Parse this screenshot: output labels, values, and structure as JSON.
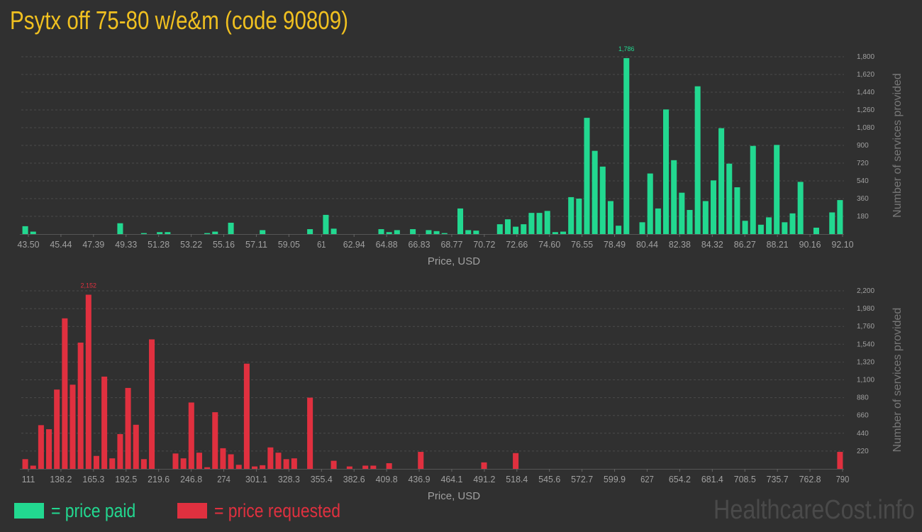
{
  "title": "Psytx off 75-80 w/e&m (code 90809)",
  "colors": {
    "background": "#303030",
    "title": "#f0c020",
    "paid": "#22d890",
    "requested": "#e0303f",
    "grid": "#4a4a4a",
    "axis_text": "#a0a0a0"
  },
  "legend": {
    "paid_label": "= price paid",
    "requested_label": "= price requested"
  },
  "watermark": "HealthcareCost.info",
  "chart_data": [
    {
      "type": "bar",
      "series_name": "price paid",
      "xlabel": "Price, USD",
      "ylabel": "Number of services provided",
      "x_tick_labels": [
        "43.50",
        "45.44",
        "47.39",
        "49.33",
        "51.28",
        "53.22",
        "55.16",
        "57.11",
        "59.05",
        "61",
        "62.94",
        "64.88",
        "66.83",
        "68.77",
        "70.72",
        "72.66",
        "74.60",
        "76.55",
        "78.49",
        "80.44",
        "82.38",
        "84.32",
        "86.27",
        "88.21",
        "90.16",
        "92.10"
      ],
      "y_tick_labels": [
        "180",
        "360",
        "540",
        "720",
        "900",
        "1,080",
        "1,260",
        "1,440",
        "1,620",
        "1,800"
      ],
      "ylim": [
        0,
        1800
      ],
      "peak_label": "1,786",
      "values": [
        80,
        25,
        0,
        0,
        0,
        0,
        0,
        0,
        0,
        0,
        0,
        0,
        110,
        0,
        0,
        10,
        0,
        20,
        20,
        0,
        0,
        0,
        0,
        10,
        25,
        0,
        115,
        0,
        0,
        0,
        40,
        0,
        0,
        0,
        0,
        0,
        50,
        0,
        195,
        55,
        0,
        0,
        0,
        0,
        0,
        50,
        20,
        40,
        0,
        50,
        0,
        40,
        30,
        10,
        0,
        260,
        40,
        35,
        0,
        0,
        100,
        150,
        75,
        100,
        215,
        215,
        235,
        20,
        25,
        375,
        360,
        1180,
        845,
        685,
        335,
        85,
        1786,
        0,
        120,
        615,
        260,
        1265,
        750,
        420,
        245,
        1500,
        335,
        545,
        1075,
        715,
        475,
        135,
        895,
        95,
        170,
        905,
        120,
        210,
        530,
        0,
        65,
        0,
        220,
        345
      ]
    },
    {
      "type": "bar",
      "series_name": "price requested",
      "xlabel": "Price, USD",
      "ylabel": "Number of services provided",
      "x_tick_labels": [
        "111",
        "138.2",
        "165.3",
        "192.5",
        "219.6",
        "246.8",
        "274",
        "301.1",
        "328.3",
        "355.4",
        "382.6",
        "409.8",
        "436.9",
        "464.1",
        "491.2",
        "518.4",
        "545.6",
        "572.7",
        "599.9",
        "627",
        "654.2",
        "681.4",
        "708.5",
        "735.7",
        "762.8",
        "790"
      ],
      "y_tick_labels": [
        "220",
        "440",
        "660",
        "880",
        "1,100",
        "1,320",
        "1,540",
        "1,760",
        "1,980",
        "2,200"
      ],
      "ylim": [
        0,
        2200
      ],
      "peak_label": "2,152",
      "values": [
        120,
        40,
        540,
        490,
        980,
        1860,
        1040,
        1560,
        2152,
        160,
        1140,
        130,
        430,
        1000,
        545,
        120,
        1600,
        0,
        0,
        190,
        130,
        820,
        200,
        20,
        700,
        255,
        180,
        50,
        1300,
        30,
        45,
        265,
        200,
        120,
        130,
        0,
        880,
        0,
        0,
        100,
        0,
        30,
        0,
        40,
        40,
        0,
        70,
        0,
        0,
        0,
        210,
        0,
        0,
        0,
        0,
        0,
        0,
        0,
        80,
        0,
        0,
        0,
        195,
        0,
        0,
        0,
        0,
        0,
        0,
        0,
        0,
        0,
        0,
        0,
        0,
        0,
        0,
        0,
        0,
        0,
        0,
        0,
        0,
        0,
        0,
        0,
        0,
        0,
        0,
        0,
        0,
        0,
        0,
        0,
        0,
        0,
        0,
        0,
        0,
        0,
        0,
        0,
        0,
        210
      ]
    }
  ]
}
